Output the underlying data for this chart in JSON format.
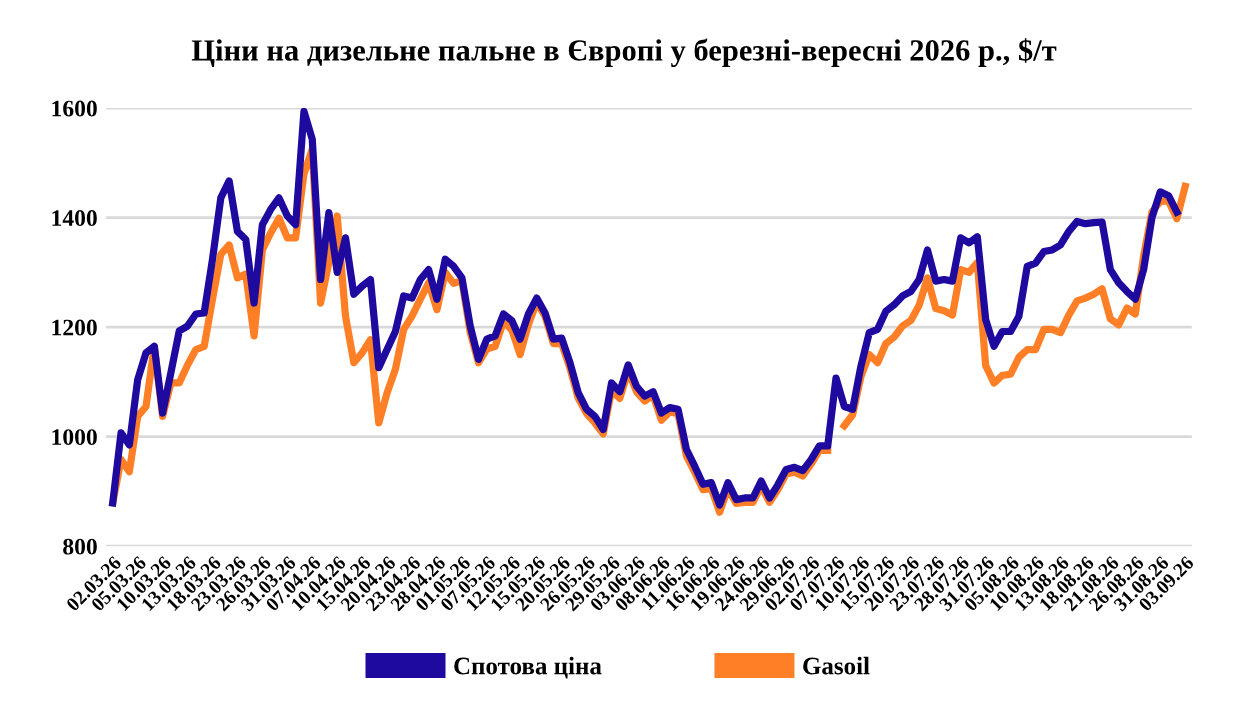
{
  "chart_data": {
    "type": "line",
    "title": "Ціни на дизельне пальне в Європі у березні-вересні 2026 р., $/т",
    "categories": [
      "02.03.26",
      null,
      null,
      "05.03.26",
      null,
      null,
      "10.03.26",
      null,
      null,
      "13.03.26",
      null,
      null,
      "18.03.26",
      null,
      null,
      "23.03.26",
      null,
      null,
      "26.03.26",
      null,
      null,
      "31.03.26",
      null,
      null,
      "07.04.26",
      null,
      null,
      "10.04.26",
      null,
      null,
      "15.04.26",
      null,
      null,
      "20.04.26",
      null,
      null,
      "23.04.26",
      null,
      null,
      "28.04.26",
      null,
      null,
      "01.05.26",
      null,
      null,
      "07.05.26",
      null,
      null,
      "12.05.26",
      null,
      null,
      "15.05.26",
      null,
      null,
      "20.05.26",
      null,
      null,
      "26.05.26",
      null,
      null,
      "29.05.26",
      null,
      null,
      "03.06.26",
      null,
      null,
      "08.06.26",
      null,
      null,
      "11.06.26",
      null,
      null,
      "16.06.26",
      null,
      null,
      "19.06.26",
      null,
      null,
      "24.06.26",
      null,
      null,
      "29.06.26",
      null,
      null,
      "02.07.26",
      null,
      null,
      "07.07.26",
      null,
      null,
      "10.07.26",
      null,
      null,
      "15.07.26",
      null,
      null,
      "20.07.26",
      null,
      null,
      "23.07.26",
      null,
      null,
      "28.07.26",
      null,
      null,
      "31.07.26",
      null,
      null,
      "05.08.26",
      null,
      null,
      "10.08.26",
      null,
      null,
      "13.08.26",
      null,
      null,
      "18.08.26",
      null,
      null,
      "21.08.26",
      null,
      null,
      "26.08.26",
      null,
      null,
      "31.08.26",
      null,
      null,
      "03.09.26"
    ],
    "series": [
      {
        "name": "Спотова ціна",
        "color": "#1f0aa0",
        "values": [
          879,
          1007,
          985,
          1104,
          1153,
          1165,
          1043,
          1117,
          1193,
          1202,
          1224,
          1226,
          1324,
          1436,
          1467,
          1375,
          1360,
          1244,
          1387,
          1415,
          1436,
          1403,
          1387,
          1594,
          1543,
          1287,
          1409,
          1300,
          1363,
          1260,
          1275,
          1287,
          1126,
          1159,
          1192,
          1257,
          1253,
          1287,
          1305,
          1251,
          1324,
          1311,
          1290,
          1202,
          1141,
          1178,
          1184,
          1224,
          1212,
          1178,
          1224,
          1253,
          1226,
          1178,
          1180,
          1135,
          1080,
          1050,
          1037,
          1013,
          1098,
          1082,
          1131,
          1092,
          1074,
          1082,
          1043,
          1053,
          1050,
          977,
          946,
          913,
          916,
          875,
          916,
          885,
          888,
          888,
          919,
          888,
          912,
          940,
          944,
          938,
          958,
          983,
          983,
          1107,
          1055,
          1050,
          1129,
          1190,
          1196,
          1229,
          1241,
          1257,
          1265,
          1287,
          1341,
          1284,
          1287,
          1284,
          1363,
          1354,
          1365,
          1214,
          1165,
          1192,
          1192,
          1220,
          1311,
          1317,
          1338,
          1341,
          1350,
          1375,
          1393,
          1389,
          1391,
          1392,
          1305,
          1281,
          1265,
          1251,
          1305,
          1400,
          1447,
          1440,
          1410,
          null
        ]
      },
      {
        "name": "Gasoil",
        "color": "#ff7f27",
        "values": [
          879,
          958,
          936,
          1037,
          1055,
          1165,
          1037,
          1098,
          1098,
          1131,
          1159,
          1165,
          1251,
          1333,
          1350,
          1290,
          1297,
          1184,
          1341,
          1372,
          1399,
          1363,
          1363,
          1480,
          1525,
          1244,
          1318,
          1403,
          1220,
          1135,
          1153,
          1177,
          1025,
          1080,
          1123,
          1196,
          1220,
          1251,
          1281,
          1232,
          1300,
          1280,
          1285,
          1190,
          1135,
          1160,
          1165,
          1210,
          1195,
          1150,
          1205,
          1245,
          1220,
          1170,
          1170,
          1125,
          1070,
          1042,
          1025,
          1005,
          1085,
          1070,
          1120,
          1082,
          1065,
          1075,
          1030,
          1045,
          1042,
          965,
          935,
          903,
          905,
          862,
          905,
          878,
          880,
          880,
          910,
          880,
          903,
          932,
          935,
          928,
          950,
          975,
          975,
          null,
          1020,
          1040,
          1110,
          1150,
          1135,
          1170,
          1182,
          1202,
          1212,
          1240,
          1290,
          1234,
          1230,
          1222,
          1305,
          1300,
          1318,
          1130,
          1098,
          1112,
          1114,
          1145,
          1159,
          1159,
          1196,
          1196,
          1190,
          1222,
          1248,
          1253,
          1260,
          1270,
          1215,
          1204,
          1235,
          1224,
          1330,
          1410,
          1430,
          1430,
          1398,
          1457
        ]
      }
    ],
    "ylim": [
      800,
      1600
    ],
    "yticks": [
      800,
      1000,
      1200,
      1400,
      1600
    ],
    "grid": "y",
    "legend": "bottom",
    "marker": "none",
    "line_style": "solid"
  }
}
